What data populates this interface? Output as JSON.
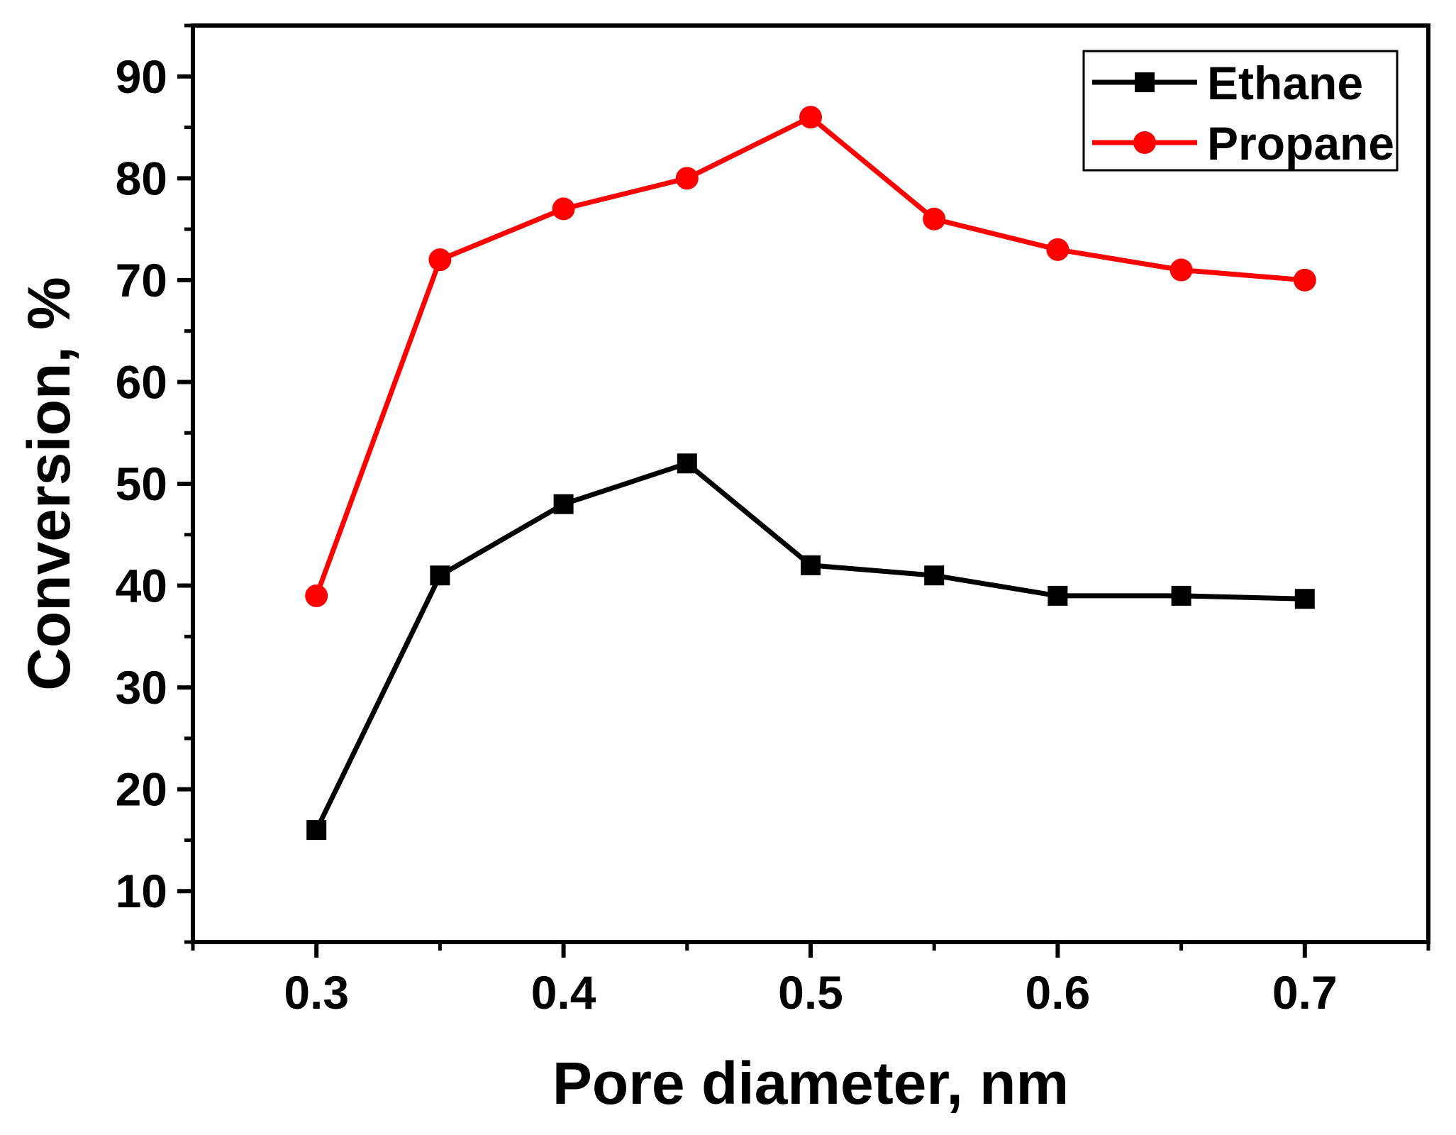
{
  "chart_data": {
    "type": "line",
    "title": "",
    "xlabel": "Pore diameter, nm",
    "ylabel": "Conversion, %",
    "xlim": [
      0.25,
      0.75
    ],
    "ylim": [
      5,
      95
    ],
    "xticks": [
      0.3,
      0.4,
      0.5,
      0.6,
      0.7
    ],
    "xtick_labels": [
      "0.3",
      "0.4",
      "0.5",
      "0.6",
      "0.7"
    ],
    "yticks": [
      10,
      20,
      30,
      40,
      50,
      60,
      70,
      80,
      90
    ],
    "ytick_labels": [
      "10",
      "20",
      "30",
      "40",
      "50",
      "60",
      "70",
      "80",
      "90"
    ],
    "grid": false,
    "legend_position": "top-right",
    "x": [
      0.3,
      0.35,
      0.4,
      0.45,
      0.5,
      0.55,
      0.6,
      0.65,
      0.7
    ],
    "series": [
      {
        "name": "Ethane",
        "color": "#000000",
        "marker": "square",
        "values": [
          16,
          41,
          48,
          52,
          42,
          41,
          39,
          39,
          38.7
        ]
      },
      {
        "name": "Propane",
        "color": "#ff0000",
        "marker": "circle",
        "values": [
          39,
          72,
          77,
          80,
          86,
          76,
          73,
          71,
          70
        ]
      }
    ]
  }
}
